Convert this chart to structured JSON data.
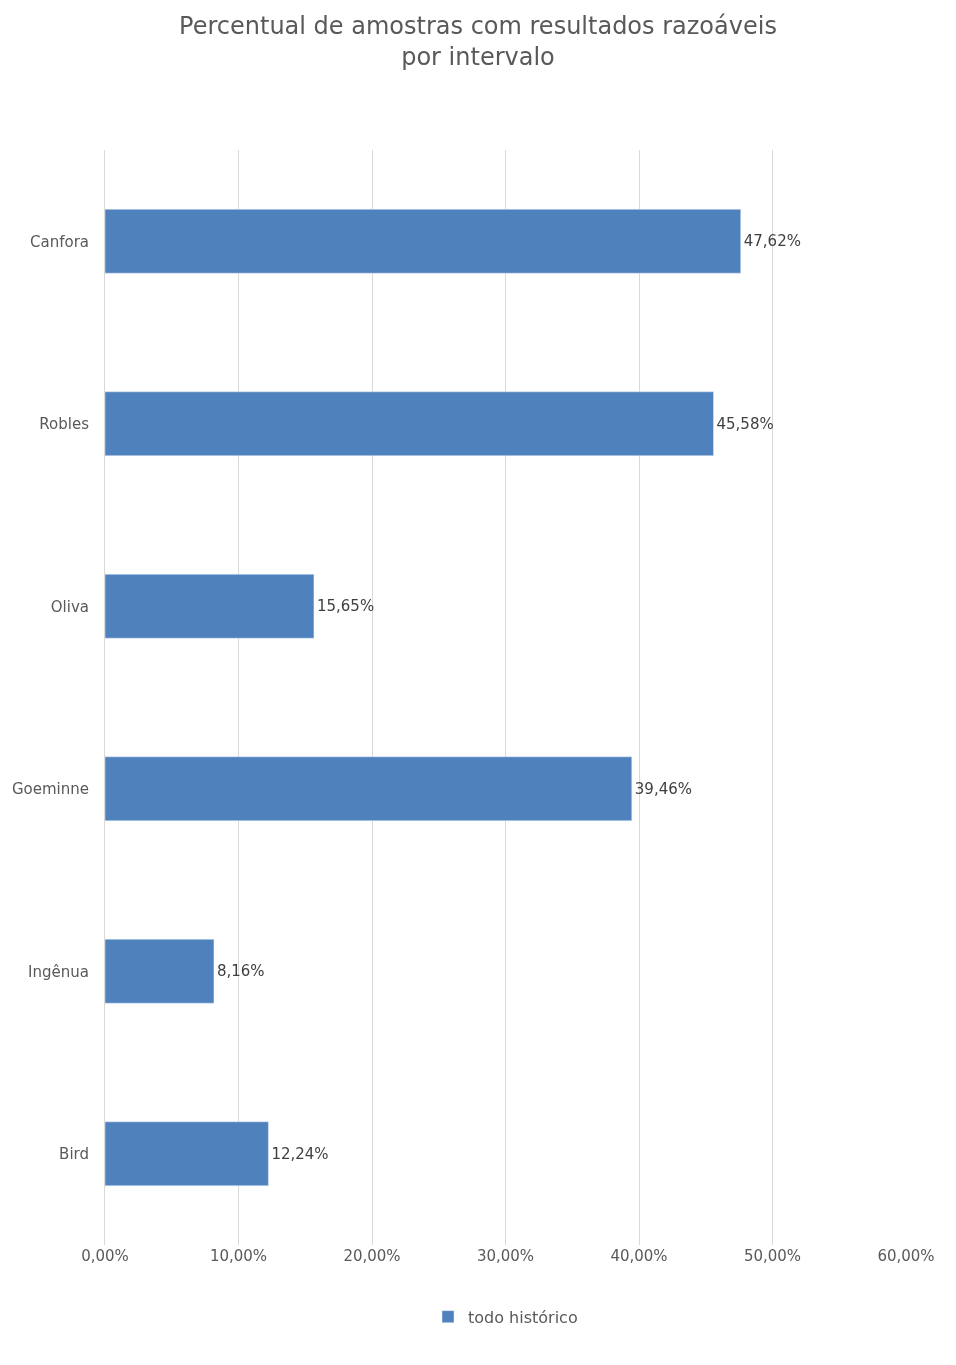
{
  "chart_data": {
    "type": "bar",
    "orientation": "horizontal",
    "title": "Percentual de amostras com resultados razoáveis\npor intervalo",
    "categories": [
      "Canfora",
      "Robles",
      "Oliva",
      "Goeminne",
      "Ingênua",
      "Bird"
    ],
    "series": [
      {
        "name": "todo histórico",
        "color": "#4f81bd",
        "values": [
          47.62,
          45.58,
          15.65,
          39.46,
          8.16,
          12.24
        ],
        "value_labels": [
          "47,62%",
          "45,58%",
          "15,65%",
          "39,46%",
          "8,16%",
          "12,24%"
        ]
      }
    ],
    "xlim": [
      0,
      60
    ],
    "xticks": [
      {
        "value": 0,
        "label": "0,00%"
      },
      {
        "value": 10,
        "label": "10,00%"
      },
      {
        "value": 20,
        "label": "20,00%"
      },
      {
        "value": 30,
        "label": "30,00%"
      },
      {
        "value": 40,
        "label": "40,00%"
      },
      {
        "value": 50,
        "label": "50,00%"
      },
      {
        "value": 60,
        "label": "60,00%"
      }
    ],
    "grid": "x",
    "legend": "bottom"
  }
}
